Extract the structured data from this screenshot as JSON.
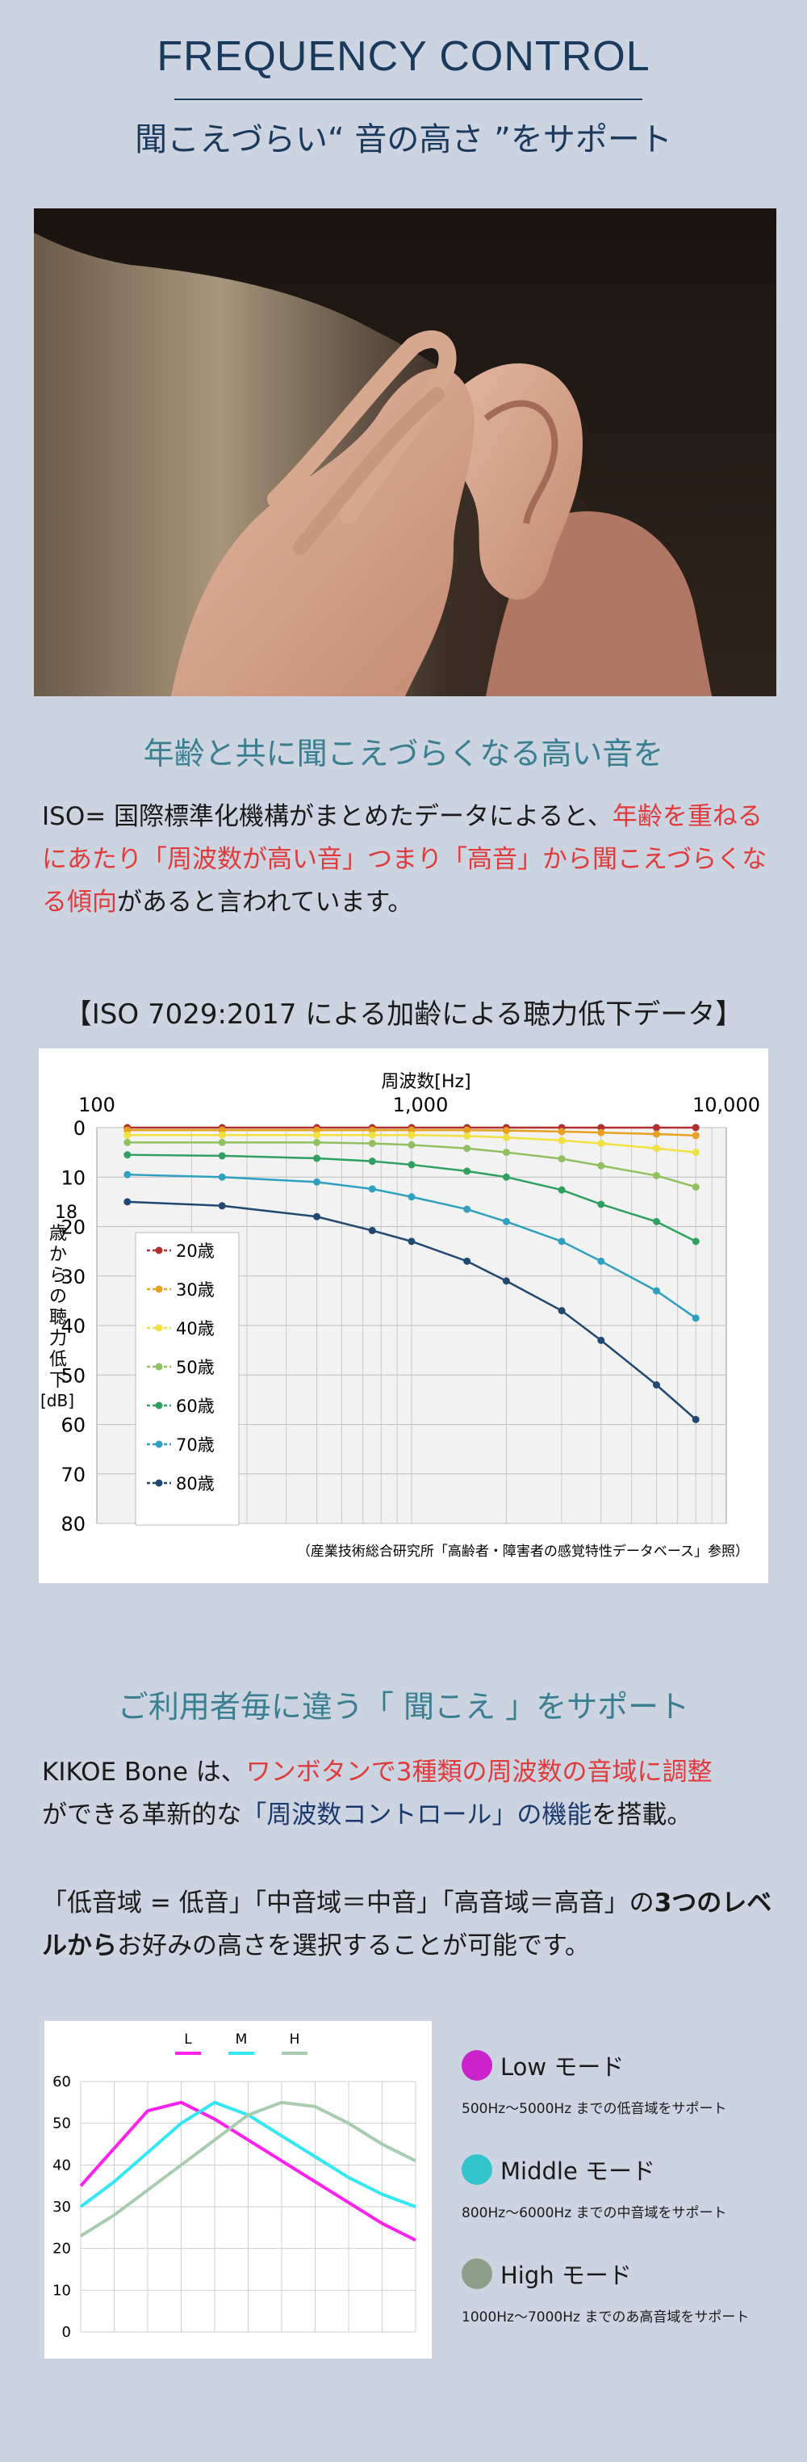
{
  "header": {
    "title": "FREQUENCY CONTROL",
    "subtitle": "聞こえづらい“ 音の高さ ”をサポート"
  },
  "section1": {
    "heading": "年齢と共に聞こえづらくなる高い音を",
    "body_1": "ISO= 国際標準化機構がまとめたデータによると、",
    "body_2_red": "年齢を重ねるにあたり「周波数が高い音」つまり「高音」から聞こえづらくなる傾向",
    "body_3": "があると言われています。"
  },
  "iso_chart_title": "【ISO 7029:2017 による加齢による聴力低下データ】",
  "section2": {
    "heading": "ご利用者毎に違う「 聞こえ 」をサポート",
    "p1_a": "KIKOE Bone は、",
    "p1_red": "ワンボタンで3種類の周波数の音域に調整",
    "p1_b": "ができる革新的な",
    "p1_navy": "「周波数コントロール」の機能",
    "p1_c": "を搭載。",
    "p2_a": "「低音域 = 低音」「中音域＝中音」「高音域＝高音」の",
    "p2_b1": "3つのレベルから",
    "p2_b2": "お好みの高さ",
    "p2_c": "を選択することが可能です。"
  },
  "modes": [
    {
      "name": "Low モード",
      "desc": "500Hz～5000Hz までの低音域をサポート",
      "color": "#cc22cc"
    },
    {
      "name": "Middle モード",
      "desc": "800Hz～6000Hz までの中音域をサポート",
      "color": "#33c4cc"
    },
    {
      "name": "High モード",
      "desc": "1000Hz～7000Hz までのあ高音域をサポート",
      "color": "#8a9e88"
    }
  ],
  "chart_data": [
    {
      "type": "line",
      "xlabel": "周波数[Hz]",
      "ylabel": "18歳からの聴力低下[dB]",
      "x_scale": "log",
      "x_ticks": [
        "100",
        "1,000",
        "10,000"
      ],
      "xlim": [
        100,
        10000
      ],
      "ylim": [
        0,
        80
      ],
      "y_ticks": [
        "0",
        "10",
        "20",
        "30",
        "40",
        "50",
        "60",
        "70",
        "80"
      ],
      "y_inverted": true,
      "grid": true,
      "legend": "left",
      "source_note": "（産業技術総合研究所「高齢者・障害者の感覚特性データベース」参照）",
      "x": [
        125,
        250,
        500,
        750,
        1000,
        1500,
        2000,
        3000,
        4000,
        6000,
        8000
      ],
      "series": [
        {
          "name": "20歳",
          "color": "#b03030",
          "values": [
            0,
            0,
            0,
            0,
            0,
            0,
            0,
            0,
            0,
            0,
            0
          ]
        },
        {
          "name": "30歳",
          "color": "#e8a020",
          "values": [
            0.5,
            0.5,
            0.5,
            0.5,
            0.5,
            0.5,
            0.6,
            0.8,
            1.0,
            1.3,
            1.6
          ]
        },
        {
          "name": "40歳",
          "color": "#f0e040",
          "values": [
            1.5,
            1.5,
            1.5,
            1.5,
            1.5,
            1.7,
            2.0,
            2.6,
            3.2,
            4.2,
            5.0
          ]
        },
        {
          "name": "50歳",
          "color": "#90c060",
          "values": [
            3,
            3,
            3,
            3.2,
            3.5,
            4.2,
            5,
            6.3,
            7.7,
            9.7,
            12
          ]
        },
        {
          "name": "60歳",
          "color": "#30a060",
          "values": [
            5.5,
            5.7,
            6.2,
            6.8,
            7.5,
            8.8,
            10,
            12.6,
            15.5,
            19,
            23
          ]
        },
        {
          "name": "70歳",
          "color": "#30a0c0",
          "values": [
            9.5,
            10,
            11,
            12.4,
            14,
            16.5,
            19,
            23,
            27,
            33,
            38.5
          ]
        },
        {
          "name": "80歳",
          "color": "#204870",
          "values": [
            15,
            15.8,
            18,
            20.8,
            23,
            27,
            31,
            37,
            43,
            52,
            59
          ]
        }
      ]
    },
    {
      "type": "line",
      "legend": "top",
      "ylim": [
        0,
        60
      ],
      "y_ticks": [
        "0",
        "10",
        "20",
        "30",
        "40",
        "50",
        "60"
      ],
      "x_count": 11,
      "grid": true,
      "series": [
        {
          "name": "L",
          "color": "#ff22ee",
          "values": [
            35,
            44,
            53,
            55,
            51,
            46,
            41,
            36,
            31,
            26,
            22
          ]
        },
        {
          "name": "M",
          "color": "#33e8f4",
          "values": [
            30,
            36,
            43,
            50,
            55,
            52,
            47,
            42,
            37,
            33,
            30
          ]
        },
        {
          "name": "H",
          "color": "#a8ccb0",
          "values": [
            23,
            28,
            34,
            40,
            46,
            52,
            55,
            54,
            50,
            45,
            41
          ]
        }
      ]
    }
  ]
}
